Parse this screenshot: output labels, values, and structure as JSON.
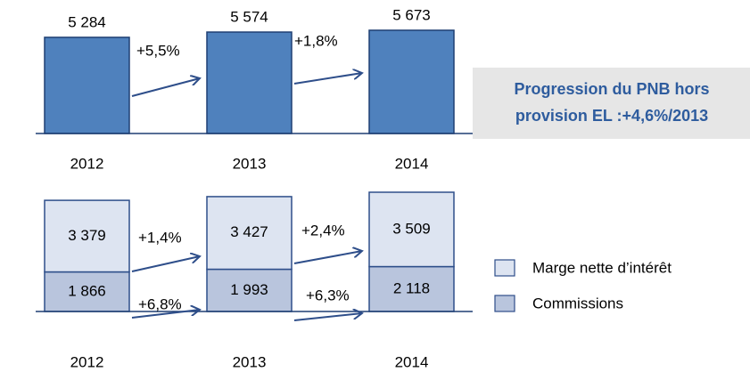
{
  "chart_data": [
    {
      "type": "bar",
      "categories": [
        "2012",
        "2013",
        "2014"
      ],
      "values": [
        5284,
        5574,
        5673
      ],
      "value_labels": [
        "5 284",
        "5 574",
        "5 673"
      ],
      "color": "#4f81bd",
      "annotations": [
        "+5,5%",
        "+1,8%"
      ],
      "note": "Progression du PNB hors provision EL :+4,6%/2013"
    },
    {
      "type": "stacked_bar",
      "categories": [
        "2012",
        "2013",
        "2014"
      ],
      "series": [
        {
          "name": "Commissions",
          "color": "#b9c5dd",
          "values": [
            1866,
            1993,
            2118
          ],
          "value_labels": [
            "1 866",
            "1 993",
            "2 118"
          ]
        },
        {
          "name": "Marge nette d’intérêt",
          "color": "#dde4f1",
          "values": [
            3379,
            3427,
            3509
          ],
          "value_labels": [
            "3 379",
            "3 427",
            "3 509"
          ]
        }
      ],
      "annotations": [
        "+6,8%",
        "+6,3%",
        "+1,4%",
        "+2,4%"
      ]
    }
  ]
}
